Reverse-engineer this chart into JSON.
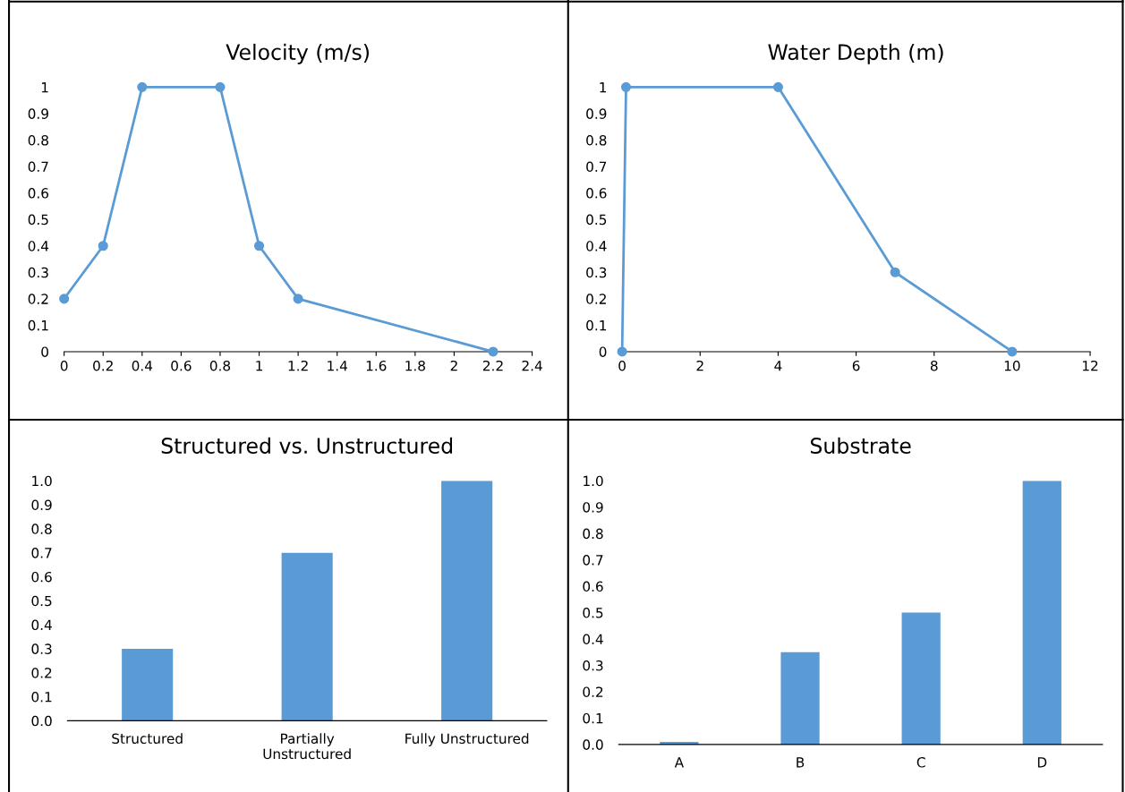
{
  "chart_data": [
    {
      "type": "line",
      "title": "Velocity (m/s)",
      "marker": "circle",
      "grid": false,
      "series": [
        {
          "color": "#5b9bd5",
          "x": [
            0,
            0.2,
            0.4,
            0.8,
            1,
            1.2,
            2.2
          ],
          "values": [
            0.2,
            0.4,
            1,
            1,
            0.4,
            0.2,
            0
          ]
        }
      ],
      "xlim": [
        0,
        2.4
      ],
      "xticks": [
        0,
        0.2,
        0.4,
        0.6,
        0.8,
        1,
        1.2,
        1.4,
        1.6,
        1.8,
        2,
        2.2,
        2.4
      ],
      "ylim": [
        0,
        1
      ],
      "yticks": [
        0,
        0.1,
        0.2,
        0.3,
        0.4,
        0.5,
        0.6,
        0.7,
        0.8,
        0.9,
        1
      ]
    },
    {
      "type": "line",
      "title": "Water Depth (m)",
      "marker": "circle",
      "grid": false,
      "series": [
        {
          "color": "#5b9bd5",
          "x": [
            0,
            0.1,
            4,
            7,
            10
          ],
          "values": [
            0,
            1,
            1,
            0.3,
            0
          ]
        }
      ],
      "xlim": [
        0,
        12
      ],
      "xticks": [
        0,
        2,
        4,
        6,
        8,
        10,
        12
      ],
      "ylim": [
        0,
        1
      ],
      "yticks": [
        0,
        0.1,
        0.2,
        0.3,
        0.4,
        0.5,
        0.6,
        0.7,
        0.8,
        0.9,
        1
      ]
    },
    {
      "type": "bar",
      "title": "Structured vs. Unstructured",
      "grid": false,
      "categories": [
        "Structured",
        "Partially\nUnstructured",
        "Fully Unstructured"
      ],
      "series": [
        {
          "color": "#5b9bd5",
          "values": [
            0.3,
            0.7,
            1.0
          ]
        }
      ],
      "ylim": [
        0,
        1
      ],
      "yticks": [
        {
          "value": 0,
          "label": "0.0"
        },
        {
          "value": 0.1,
          "label": "0.1"
        },
        {
          "value": 0.2,
          "label": "0.2"
        },
        {
          "value": 0.3,
          "label": "0.3"
        },
        {
          "value": 0.4,
          "label": "0.4"
        },
        {
          "value": 0.5,
          "label": "0.5"
        },
        {
          "value": 0.6,
          "label": "0.6"
        },
        {
          "value": 0.7,
          "label": "0.7"
        },
        {
          "value": 0.8,
          "label": "0.8"
        },
        {
          "value": 0.9,
          "label": "0.9"
        },
        {
          "value": 1,
          "label": "1.0"
        }
      ]
    },
    {
      "type": "bar",
      "title": "Substrate",
      "grid": false,
      "categories": [
        "A",
        "B",
        "C",
        "D"
      ],
      "series": [
        {
          "color": "#5b9bd5",
          "values": [
            0.01,
            0.35,
            0.5,
            1.0
          ]
        }
      ],
      "ylim": [
        0,
        1
      ],
      "yticks": [
        {
          "value": 0,
          "label": "0.0"
        },
        {
          "value": 0.1,
          "label": "0.1"
        },
        {
          "value": 0.2,
          "label": "0.2"
        },
        {
          "value": 0.3,
          "label": "0.3"
        },
        {
          "value": 0.4,
          "label": "0.4"
        },
        {
          "value": 0.5,
          "label": "0.5"
        },
        {
          "value": 0.6,
          "label": "0.6"
        },
        {
          "value": 0.7,
          "label": "0.7"
        },
        {
          "value": 0.8,
          "label": "0.8"
        },
        {
          "value": 0.9,
          "label": "0.9"
        },
        {
          "value": 1,
          "label": "1.0"
        }
      ]
    }
  ]
}
